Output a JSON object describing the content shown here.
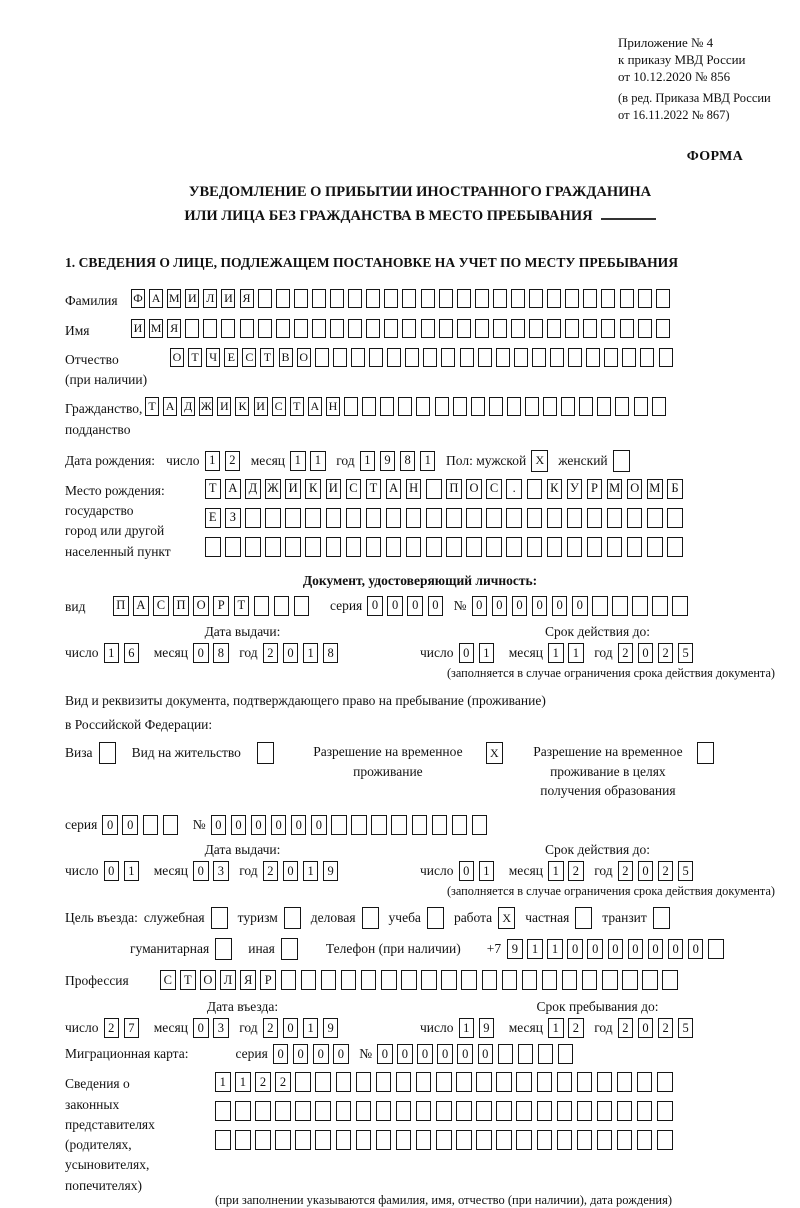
{
  "header": {
    "line1": "Приложение № 4",
    "line2": "к приказу МВД России",
    "line3": "от 10.12.2020 № 856",
    "sub1": "(в ред. Приказа МВД России",
    "sub2": "от 16.11.2022 № 867)",
    "form_label": "ФОРМА"
  },
  "title": {
    "line1": "УВЕДОМЛЕНИЕ О ПРИБЫТИИ ИНОСТРАННОГО ГРАЖДАНИНА",
    "line2": "ИЛИ ЛИЦА БЕЗ ГРАЖДАНСТВА В МЕСТО ПРЕБЫВАНИЯ"
  },
  "section1_heading": "1. СВЕДЕНИЯ О ЛИЦЕ, ПОДЛЕЖАЩЕМ ПОСТАНОВКЕ НА УЧЕТ ПО МЕСТУ ПРЕБЫВАНИЯ",
  "shared": {
    "day": "число",
    "month": "месяц",
    "year": "год"
  },
  "person": {
    "surname_label": "Фамилия",
    "surname": {
      "value": "ФАМИЛИЯ",
      "length": 30
    },
    "name_label": "Имя",
    "name": {
      "value": "ИМЯ",
      "length": 30
    },
    "patronymic_label1": "Отчество",
    "patronymic_label2": "(при наличии)",
    "patronymic": {
      "value": "ОТЧЕСТВО",
      "length": 28
    },
    "citizenship_label1": "Гражданство,",
    "citizenship_label2": "подданство",
    "citizenship": {
      "value": "ТАДЖИКИСТАН",
      "length": 29
    },
    "birth_label": "Дата рождения:",
    "birth_day": {
      "value": "12",
      "length": 2
    },
    "birth_month": {
      "value": "11",
      "length": 2
    },
    "birth_year": {
      "value": "1981",
      "length": 4
    },
    "sex_label": "Пол:",
    "male_label": "мужской",
    "male_box": {
      "value": "X",
      "length": 1
    },
    "female_label": "женский",
    "female_box": {
      "value": "",
      "length": 1
    },
    "birthplace_label": "Место рождения:",
    "birthplace_sub1": "государство",
    "birthplace_sub2": "город или другой",
    "birthplace_sub3": "населенный пункт",
    "birthplace_row1": {
      "value": "ТАДЖИКИСТАН ПОС. КУРМОМБ",
      "length": 24
    },
    "birthplace_row2": {
      "value": "ЕЗ",
      "length": 24
    },
    "birthplace_row3": {
      "value": "",
      "length": 24
    }
  },
  "identity_doc": {
    "heading": "Документ, удостоверяющий личность:",
    "kind_label": "вид",
    "kind": {
      "value": "ПАСПОРТ",
      "length": 10
    },
    "series_label": "серия",
    "series": {
      "value": "0000",
      "length": 4
    },
    "number_label": "№",
    "number": {
      "value": "000000",
      "length": 11
    },
    "issue_label": "Дата выдачи:",
    "issue_day": {
      "value": "16",
      "length": 2
    },
    "issue_month": {
      "value": "08",
      "length": 2
    },
    "issue_year": {
      "value": "2018",
      "length": 4
    },
    "valid_label": "Срок действия до:",
    "valid_day": {
      "value": "01",
      "length": 2
    },
    "valid_month": {
      "value": "11",
      "length": 2
    },
    "valid_year": {
      "value": "2025",
      "length": 4
    },
    "note": "(заполняется в случае ограничения срока действия документа)"
  },
  "resident_doc": {
    "line1": "Вид и реквизиты документа, подтверждающего право на пребывание (проживание)",
    "line2": "в Российской Федерации:",
    "visa_label": "Виза",
    "visa_box": {
      "value": "",
      "length": 1
    },
    "residence_label": "Вид на жительство",
    "residence_box": {
      "value": "",
      "length": 1
    },
    "temp_label": "Разрешение на временное проживание",
    "temp_box": {
      "value": "X",
      "length": 1
    },
    "temp_edu_label": "Разрешение на временное проживание в целях получения образования",
    "temp_edu_box": {
      "value": "",
      "length": 1
    },
    "series_label": "серия",
    "series": {
      "value": "00",
      "length": 4
    },
    "number_label": "№",
    "number": {
      "value": "000000",
      "length": 14
    },
    "issue_label": "Дата выдачи:",
    "issue_day": {
      "value": "01",
      "length": 2
    },
    "issue_month": {
      "value": "03",
      "length": 2
    },
    "issue_year": {
      "value": "2019",
      "length": 4
    },
    "valid_label": "Срок действия до:",
    "valid_day": {
      "value": "01",
      "length": 2
    },
    "valid_month": {
      "value": "12",
      "length": 2
    },
    "valid_year": {
      "value": "2025",
      "length": 4
    },
    "note": "(заполняется в случае ограничения срока действия документа)"
  },
  "purpose": {
    "label": "Цель въезда:",
    "items": [
      {
        "label": "служебная",
        "box": {
          "value": "",
          "length": 1
        }
      },
      {
        "label": "туризм",
        "box": {
          "value": "",
          "length": 1
        }
      },
      {
        "label": "деловая",
        "box": {
          "value": "",
          "length": 1
        }
      },
      {
        "label": "учеба",
        "box": {
          "value": "",
          "length": 1
        }
      },
      {
        "label": "работа",
        "box": {
          "value": "X",
          "length": 1
        }
      },
      {
        "label": "частная",
        "box": {
          "value": "",
          "length": 1
        }
      },
      {
        "label": "транзит",
        "box": {
          "value": "",
          "length": 1
        }
      },
      {
        "label": "гуманитарная",
        "box": {
          "value": "",
          "length": 1
        }
      },
      {
        "label": "иная",
        "box": {
          "value": "",
          "length": 1
        }
      }
    ],
    "phone_label": "Телефон (при наличии)",
    "phone_prefix": "+7",
    "phone": {
      "value": "9110000000",
      "length": 11
    }
  },
  "profession": {
    "label": "Профессия",
    "value": {
      "value": "СТОЛЯР",
      "length": 26
    }
  },
  "entry": {
    "date_label": "Дата въезда:",
    "entry_day": {
      "value": "27",
      "length": 2
    },
    "entry_month": {
      "value": "03",
      "length": 2
    },
    "entry_year": {
      "value": "2019",
      "length": 4
    },
    "stay_label": "Срок пребывания до:",
    "stay_day": {
      "value": "19",
      "length": 2
    },
    "stay_month": {
      "value": "12",
      "length": 2
    },
    "stay_year": {
      "value": "2025",
      "length": 4
    }
  },
  "migration_card": {
    "label": "Миграционная карта:",
    "series_label": "серия",
    "series": {
      "value": "0000",
      "length": 4
    },
    "number_label": "№",
    "number": {
      "value": "000000",
      "length": 10
    }
  },
  "legal_reps": {
    "label_lines": [
      "Сведения о",
      "законных",
      "представителях",
      "(родителях,",
      "усыновителях,",
      "попечителях)"
    ],
    "row1": {
      "value": "1122",
      "length": 23
    },
    "row2": {
      "value": "",
      "length": 23
    },
    "row3": {
      "value": "",
      "length": 23
    },
    "note": "(при заполнении указываются фамилия, имя, отчество (при наличии), дата рождения)"
  }
}
